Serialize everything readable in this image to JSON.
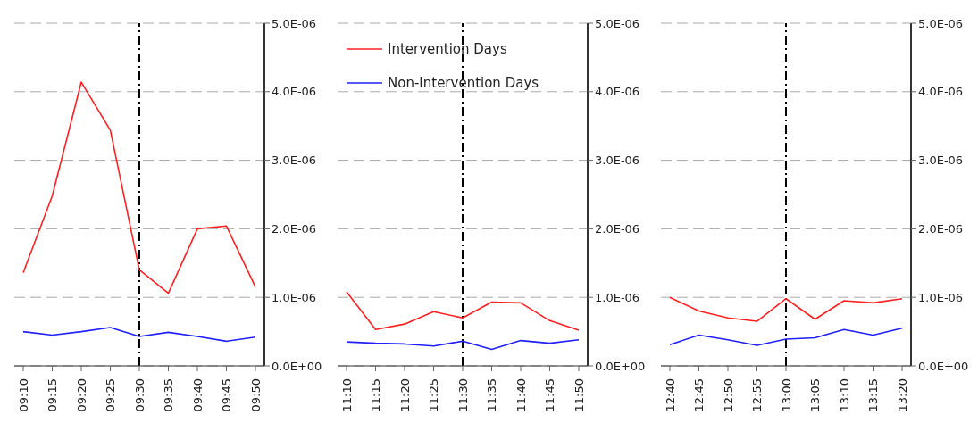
{
  "chart_data": [
    {
      "type": "line",
      "categories": [
        "09:10",
        "09:15",
        "09:20",
        "09:25",
        "09:30",
        "09:35",
        "09:40",
        "09:45",
        "09:50"
      ],
      "series": [
        {
          "color": "#ff2020",
          "values": [
            1.36e-06,
            2.48e-06,
            4.14e-06,
            3.44e-06,
            1.4e-06,
            1.06e-06,
            2e-06,
            2.04e-06,
            1.15e-06
          ]
        },
        {
          "color": "#2020ff",
          "values": [
            5e-07,
            4.5e-07,
            5e-07,
            5.6e-07,
            4.3e-07,
            4.9e-07,
            4.3e-07,
            3.6e-07,
            4.2e-07
          ]
        }
      ],
      "ylim": [
        0,
        5e-06
      ],
      "yticks": [
        {
          "value": 0,
          "label": "0.0E+00"
        },
        {
          "value": 1e-06,
          "label": "1.0E-06"
        },
        {
          "value": 2e-06,
          "label": "2.0E-06"
        },
        {
          "value": 3e-06,
          "label": "3.0E-06"
        },
        {
          "value": 4e-06,
          "label": "4.0E-06"
        },
        {
          "value": 5e-06,
          "label": "5.0E-06"
        }
      ],
      "grid": "y",
      "marker": "none",
      "line_style": "solid",
      "legend": false,
      "ref_lines": [
        {
          "axis": "x",
          "value": "09:30",
          "color": "#000000",
          "line_style": "dashed"
        }
      ]
    },
    {
      "type": "line",
      "categories": [
        "11:10",
        "11:15",
        "11:20",
        "11:25",
        "11:30",
        "11:35",
        "11:40",
        "11:45",
        "11:50"
      ],
      "series": [
        {
          "name": "Intervention Days",
          "color": "#ff2020",
          "values": [
            1.08e-06,
            5.3e-07,
            6.1e-07,
            7.9e-07,
            7e-07,
            9.3e-07,
            9.2e-07,
            6.6e-07,
            5.2e-07
          ]
        },
        {
          "name": "Non-Intervention Days",
          "color": "#2020ff",
          "values": [
            3.5e-07,
            3.3e-07,
            3.2e-07,
            2.9e-07,
            3.6e-07,
            2.4e-07,
            3.7e-07,
            3.3e-07,
            3.8e-07
          ]
        }
      ],
      "ylim": [
        0,
        5e-06
      ],
      "yticks": [
        {
          "value": 0,
          "label": "0.0E+00"
        },
        {
          "value": 1e-06,
          "label": "1.0E-06"
        },
        {
          "value": 2e-06,
          "label": "2.0E-06"
        },
        {
          "value": 3e-06,
          "label": "3.0E-06"
        },
        {
          "value": 4e-06,
          "label": "4.0E-06"
        },
        {
          "value": 5e-06,
          "label": "5.0E-06"
        }
      ],
      "grid": "y",
      "marker": "none",
      "line_style": "solid",
      "legend": "top left",
      "ref_lines": [
        {
          "axis": "x",
          "value": "11:30",
          "color": "#000000",
          "line_style": "dashed"
        }
      ]
    },
    {
      "type": "line",
      "categories": [
        "12:40",
        "12:45",
        "12:50",
        "12:55",
        "13:00",
        "13:05",
        "13:10",
        "13:15",
        "13:20"
      ],
      "series": [
        {
          "color": "#ff2020",
          "values": [
            1e-06,
            8e-07,
            7e-07,
            6.5e-07,
            9.8e-07,
            6.8e-07,
            9.5e-07,
            9.2e-07,
            9.8e-07
          ]
        },
        {
          "color": "#2020ff",
          "values": [
            3.1e-07,
            4.5e-07,
            3.8e-07,
            3e-07,
            3.9e-07,
            4.1e-07,
            5.3e-07,
            4.5e-07,
            5.5e-07
          ]
        }
      ],
      "ylim": [
        0,
        5e-06
      ],
      "yticks": [
        {
          "value": 0,
          "label": "0.0E+00"
        },
        {
          "value": 1e-06,
          "label": "1.0E-06"
        },
        {
          "value": 2e-06,
          "label": "2.0E-06"
        },
        {
          "value": 3e-06,
          "label": "3.0E-06"
        },
        {
          "value": 4e-06,
          "label": "4.0E-06"
        },
        {
          "value": 5e-06,
          "label": "5.0E-06"
        }
      ],
      "grid": "y",
      "marker": "none",
      "line_style": "solid",
      "legend": false,
      "ref_lines": [
        {
          "axis": "x",
          "value": "13:00",
          "color": "#000000",
          "line_style": "dashed"
        }
      ]
    }
  ]
}
